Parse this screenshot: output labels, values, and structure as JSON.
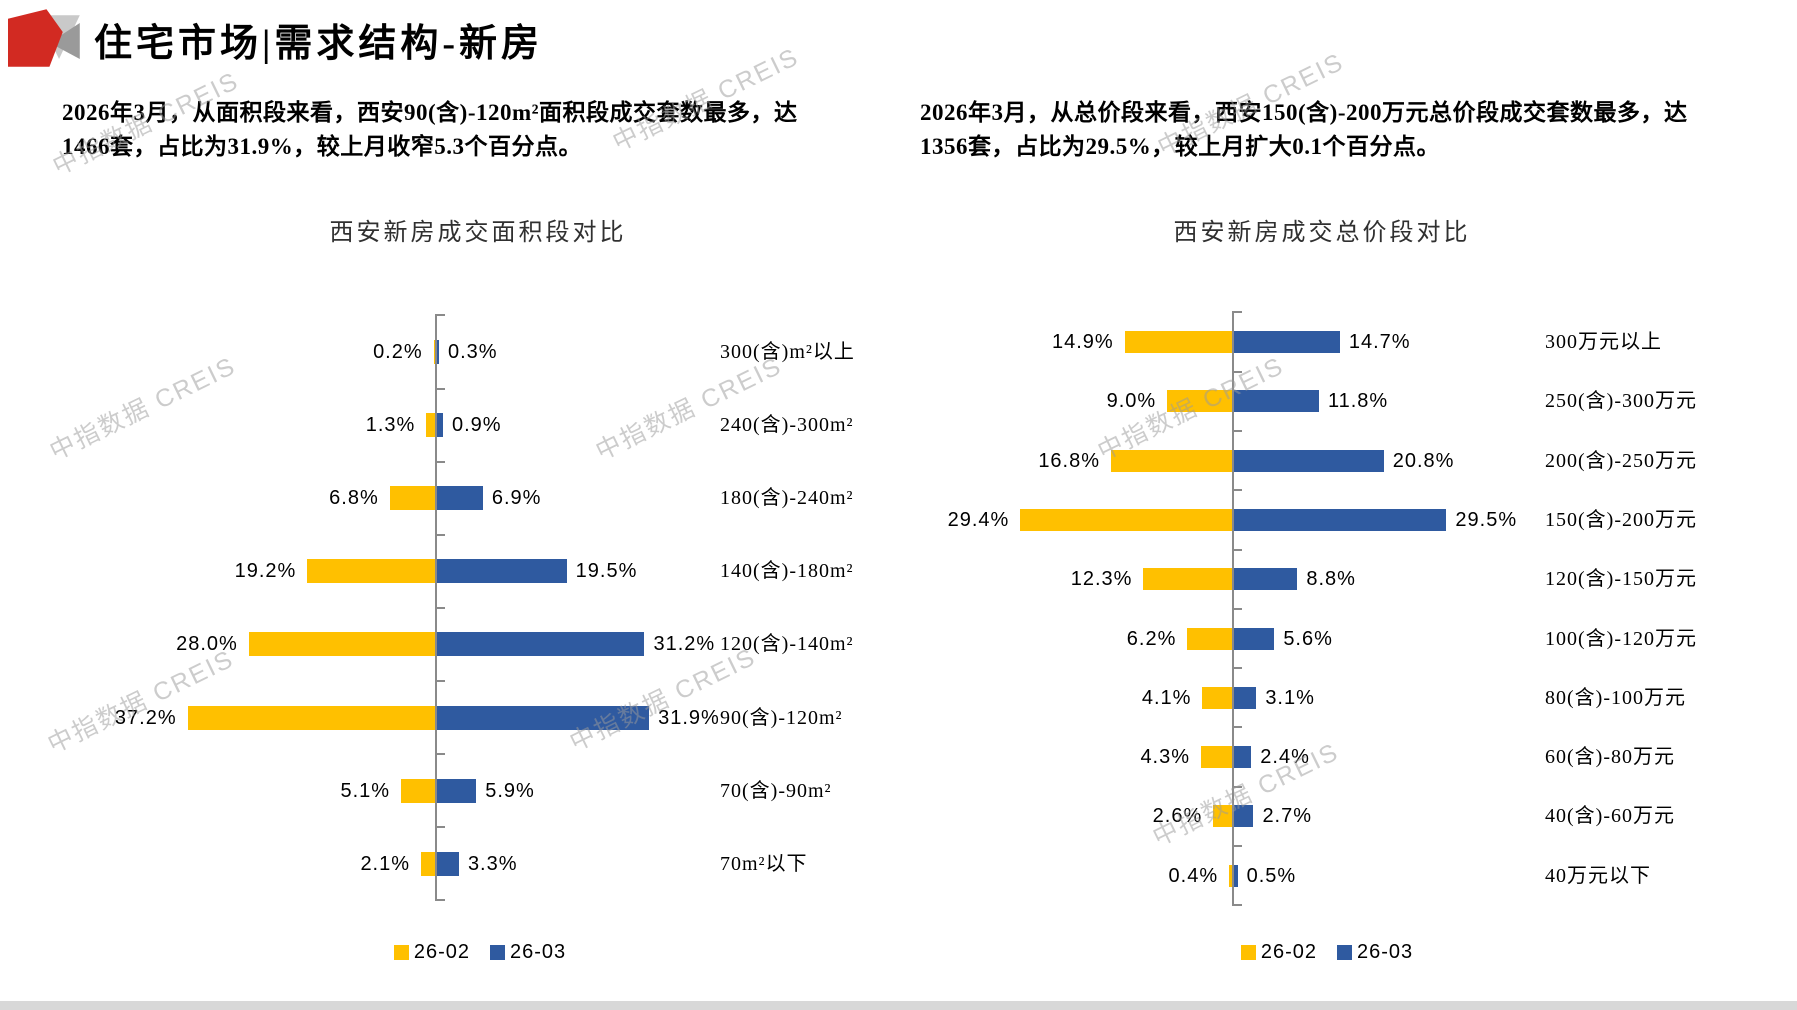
{
  "header": {
    "title": "住宅市场|需求结构-新房"
  },
  "watermark": {
    "text": "中指数据 CREIS"
  },
  "left_panel": {
    "summary": "2026年3月，从面积段来看，西安90(含)-120m²面积段成交套数最多，达1466套，占比为31.9%，较上月收窄5.3个百分点。",
    "chart_title": "西安新房成交面积段对比"
  },
  "right_panel": {
    "summary": "2026年3月，从总价段来看，西安150(含)-200万元总价段成交套数最多，达1356套，占比为29.5%，较上月扩大0.1个百分点。",
    "chart_title": "西安新房成交总价段对比"
  },
  "colors": {
    "series_2602": "#FFC000",
    "series_2603": "#2F5AA0",
    "accent_red": "#D22A22",
    "logo_gray_light": "#C9C9C9",
    "logo_gray_dark": "#9A9A9A",
    "axis": "#8A8A8A",
    "watermark": "#9B9B9B",
    "bottom_strip": "#D8D8D8"
  },
  "chart_data": [
    {
      "id": "area-segment-chart",
      "type": "bar",
      "orientation": "horizontal-tornado",
      "title": "西安新房成交面积段对比",
      "unit": "%",
      "legend_position": "bottom",
      "categories": [
        "300(含)m²以上",
        "240(含)-300m²",
        "180(含)-240m²",
        "140(含)-180m²",
        "120(含)-140m²",
        "90(含)-120m²",
        "70(含)-90m²",
        "70m²以下"
      ],
      "series": [
        {
          "name": "26-02",
          "side": "left",
          "color": "#FFC000",
          "values": [
            0.2,
            1.3,
            6.8,
            19.2,
            28.0,
            37.2,
            5.1,
            2.1
          ]
        },
        {
          "name": "26-03",
          "side": "right",
          "color": "#2F5AA0",
          "values": [
            0.3,
            0.9,
            6.9,
            19.5,
            31.2,
            31.9,
            5.9,
            3.3
          ]
        }
      ]
    },
    {
      "id": "price-segment-chart",
      "type": "bar",
      "orientation": "horizontal-tornado",
      "title": "西安新房成交总价段对比",
      "unit": "%",
      "legend_position": "bottom",
      "categories": [
        "300万元以上",
        "250(含)-300万元",
        "200(含)-250万元",
        "150(含)-200万元",
        "120(含)-150万元",
        "100(含)-120万元",
        "80(含)-100万元",
        "60(含)-80万元",
        "40(含)-60万元",
        "40万元以下"
      ],
      "series": [
        {
          "name": "26-02",
          "side": "left",
          "color": "#FFC000",
          "values": [
            14.9,
            9.0,
            16.8,
            29.4,
            12.3,
            6.2,
            4.1,
            4.3,
            2.6,
            0.4
          ]
        },
        {
          "name": "26-03",
          "side": "right",
          "color": "#2F5AA0",
          "values": [
            14.7,
            11.8,
            20.8,
            29.5,
            8.8,
            5.6,
            3.1,
            2.4,
            2.7,
            0.5
          ]
        }
      ]
    }
  ]
}
